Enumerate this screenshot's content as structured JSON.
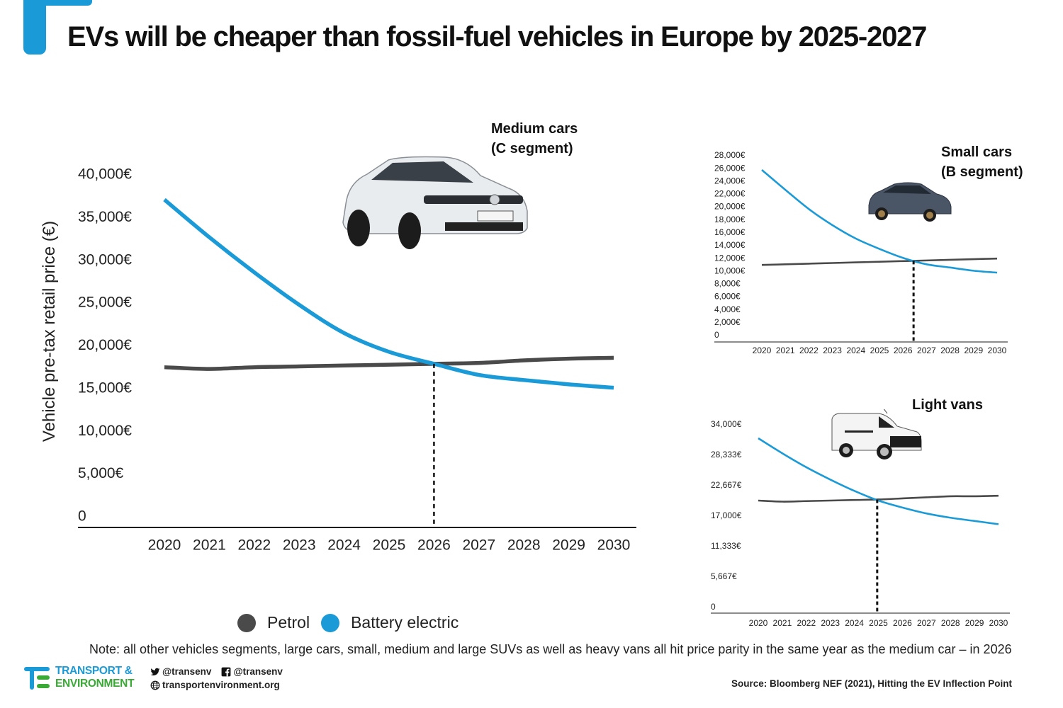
{
  "title": "EVs will be cheaper than fossil-fuel vehicles in Europe by 2025-2027",
  "colors": {
    "accent": "#1a9ad6",
    "petrol": "#4a4a4a",
    "battery_electric": "#1a9ad6",
    "brand_green": "#3aa935"
  },
  "legend": [
    {
      "label": "Petrol",
      "color": "#4a4a4a"
    },
    {
      "label": "Battery electric",
      "color": "#1a9ad6"
    }
  ],
  "note": "Note: all other vehicles segments, large cars, small, medium and large SUVs as well as heavy vans all hit price parity in the same year as the medium car – in 2026",
  "source": "Source: Bloomberg NEF (2021), Hitting the EV Inflection Point",
  "footer": {
    "brand_line1": "TRANSPORT &",
    "brand_line2": "ENVIRONMENT",
    "twitter": "@transenv",
    "facebook": "@transenv",
    "website": "transportenvironment.org",
    "icons": [
      "twitter-icon",
      "facebook-icon",
      "globe-icon"
    ]
  },
  "chart_data": [
    {
      "type": "line",
      "title": "Medium cars (C segment)",
      "title_lines": [
        "Medium cars",
        "(C segment)"
      ],
      "image": "medium-car-photo",
      "xlabel": "",
      "ylabel": "Vehicle pre-tax retail price (€)",
      "x": [
        2020,
        2021,
        2022,
        2023,
        2024,
        2025,
        2026,
        2027,
        2028,
        2029,
        2030
      ],
      "x_tick_labels": [
        "2020",
        "2021",
        "2022",
        "2023",
        "2024",
        "2025",
        "2026",
        "2027",
        "2028",
        "2029",
        "2030"
      ],
      "y_tick_values": [
        0,
        5000,
        10000,
        15000,
        20000,
        25000,
        30000,
        35000,
        40000
      ],
      "y_tick_labels": [
        "0",
        "5,000€",
        "10,000€",
        "15,000€",
        "20,000€",
        "25,000€",
        "30,000€",
        "35,000€",
        "40,000€"
      ],
      "ylim": [
        0,
        40000
      ],
      "grid": false,
      "parity_year": 2026,
      "parity_marker_x": 2026,
      "series": [
        {
          "name": "Petrol",
          "color": "#4a4a4a",
          "values": [
            17500,
            17300,
            17500,
            17600,
            17700,
            17800,
            17900,
            18000,
            18300,
            18500,
            18600
          ]
        },
        {
          "name": "Battery electric",
          "color": "#1a9ad6",
          "values": [
            37100,
            32700,
            28600,
            24800,
            21500,
            19300,
            17900,
            16600,
            16000,
            15500,
            15100
          ]
        }
      ],
      "legend_position": "bottom"
    },
    {
      "type": "line",
      "title": "Small cars (B segment)",
      "title_lines": [
        "Small cars",
        "(B segment)"
      ],
      "image": "small-car-photo",
      "x": [
        2020,
        2021,
        2022,
        2023,
        2024,
        2025,
        2026,
        2027,
        2028,
        2029,
        2030
      ],
      "x_tick_labels": [
        "2020",
        "2021",
        "2022",
        "2023",
        "2024",
        "2025",
        "2026",
        "2027",
        "2028",
        "2029",
        "2030"
      ],
      "y_tick_values": [
        0,
        2000,
        4000,
        6000,
        8000,
        10000,
        12000,
        14000,
        16000,
        18000,
        20000,
        22000,
        24000,
        26000,
        28000
      ],
      "y_tick_labels": [
        "0",
        "2,000€",
        "4,000€",
        "6,000€",
        "8,000€",
        "10,000€",
        "12,000€",
        "14,000€",
        "16,000€",
        "18,000€",
        "20,000€",
        "22,000€",
        "24,000€",
        "26,000€",
        "28,000€"
      ],
      "ylim": [
        0,
        28000
      ],
      "grid": false,
      "parity_year": 2026.5,
      "parity_marker_x": 2026.45,
      "series": [
        {
          "name": "Petrol",
          "color": "#4a4a4a",
          "values": [
            11000,
            11100,
            11200,
            11300,
            11400,
            11500,
            11600,
            11700,
            11800,
            11900,
            12000
          ]
        },
        {
          "name": "Battery electric",
          "color": "#1a9ad6",
          "values": [
            25800,
            22700,
            19700,
            17200,
            15100,
            13500,
            12100,
            11100,
            10600,
            10100,
            9800
          ]
        }
      ]
    },
    {
      "type": "line",
      "title": "Light vans",
      "title_lines": [
        "Light vans"
      ],
      "image": "light-van-photo",
      "x": [
        2020,
        2021,
        2022,
        2023,
        2024,
        2025,
        2026,
        2027,
        2028,
        2029,
        2030
      ],
      "x_tick_labels": [
        "2020",
        "2021",
        "2022",
        "2023",
        "2024",
        "2025",
        "2026",
        "2027",
        "2028",
        "2029",
        "2030"
      ],
      "y_tick_values": [
        0,
        5667,
        11333,
        17000,
        22667,
        28333,
        34000
      ],
      "y_tick_labels": [
        "0",
        "5,667€",
        "11,333€",
        "17,000€",
        "22,667€",
        "28,333€",
        "34,000€"
      ],
      "ylim": [
        0,
        34000
      ],
      "grid": false,
      "parity_year": 2025,
      "parity_marker_x": 2024.95,
      "series": [
        {
          "name": "Petrol",
          "color": "#4a4a4a",
          "values": [
            19900,
            19700,
            19800,
            19900,
            20000,
            20100,
            20300,
            20500,
            20700,
            20700,
            20800
          ]
        },
        {
          "name": "Battery electric",
          "color": "#1a9ad6",
          "values": [
            31500,
            28700,
            26100,
            23800,
            21700,
            19900,
            18600,
            17500,
            16700,
            16100,
            15500
          ]
        }
      ]
    }
  ]
}
